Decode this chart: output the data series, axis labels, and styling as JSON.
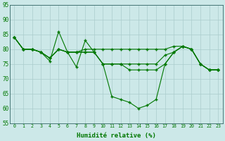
{
  "title": "",
  "xlabel": "Humidité relative (%)",
  "ylabel": "",
  "background_color": "#cce8e8",
  "grid_color": "#aacccc",
  "line_color": "#007700",
  "marker_color": "#007700",
  "ylim": [
    55,
    95
  ],
  "xlim": [
    -0.5,
    23.5
  ],
  "yticks": [
    55,
    60,
    65,
    70,
    75,
    80,
    85,
    90,
    95
  ],
  "xticks": [
    0,
    1,
    2,
    3,
    4,
    5,
    6,
    7,
    8,
    9,
    10,
    11,
    12,
    13,
    14,
    15,
    16,
    17,
    18,
    19,
    20,
    21,
    22,
    23
  ],
  "series": [
    [
      84,
      80,
      80,
      79,
      76,
      86,
      79,
      74,
      83,
      79,
      75,
      64,
      63,
      62,
      60,
      61,
      63,
      75,
      79,
      81,
      80,
      75,
      73,
      73
    ],
    [
      84,
      80,
      80,
      79,
      77,
      80,
      79,
      79,
      80,
      80,
      80,
      80,
      80,
      80,
      80,
      80,
      80,
      80,
      81,
      81,
      80,
      75,
      73,
      73
    ],
    [
      84,
      80,
      80,
      79,
      77,
      80,
      79,
      79,
      79,
      79,
      75,
      75,
      75,
      75,
      75,
      75,
      75,
      78,
      79,
      81,
      80,
      75,
      73,
      73
    ],
    [
      84,
      80,
      80,
      79,
      77,
      80,
      79,
      79,
      79,
      79,
      75,
      75,
      75,
      73,
      73,
      73,
      73,
      75,
      79,
      81,
      80,
      75,
      73,
      73
    ]
  ]
}
